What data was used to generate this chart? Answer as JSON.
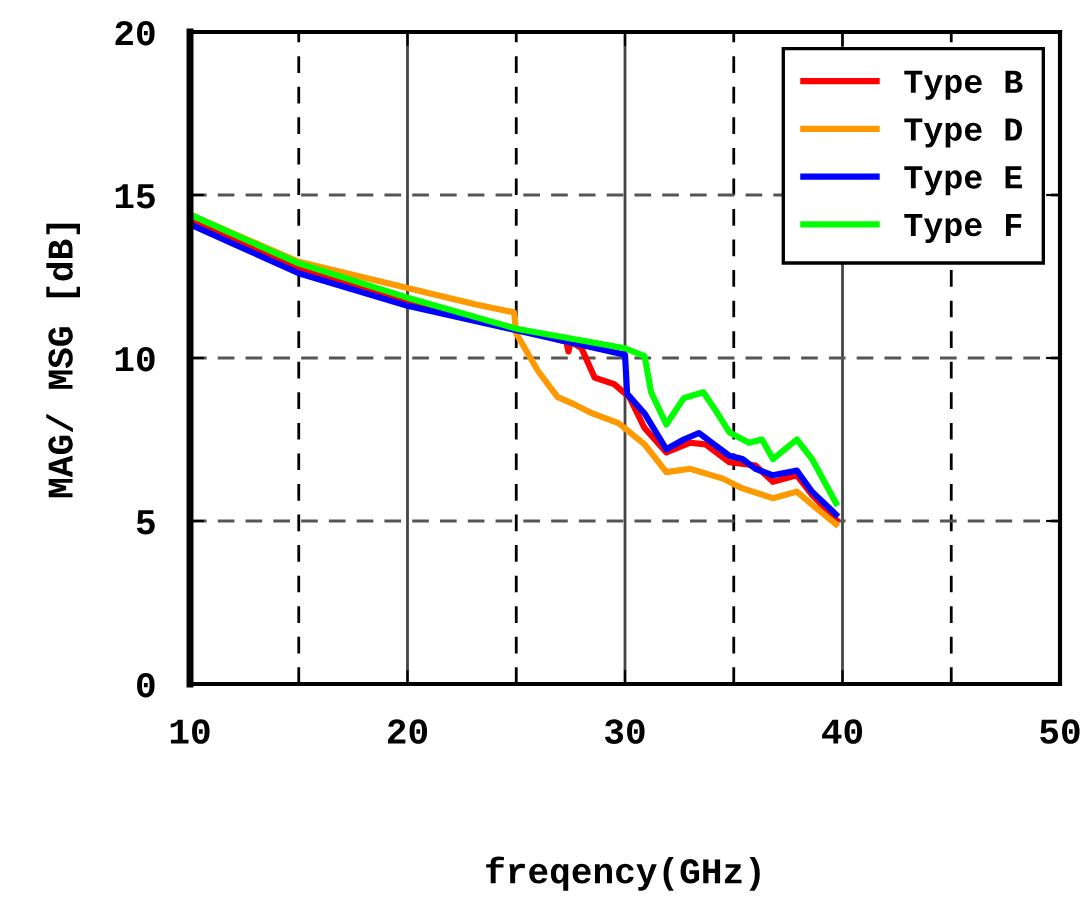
{
  "chart_data": {
    "type": "line",
    "xlabel": "freqency(GHz)",
    "ylabel": "MAG/ MSG [dB]",
    "xlim": [
      10,
      50
    ],
    "ylim": [
      0,
      20
    ],
    "xticks": [
      10,
      20,
      30,
      40,
      50
    ],
    "yticks": [
      0,
      5,
      10,
      15,
      20
    ],
    "grid": true,
    "legend": "top right",
    "line_style": "solid",
    "marker": "none",
    "series": [
      {
        "name": "Type B",
        "color": "#ff0000",
        "x": [
          10,
          15,
          20,
          25,
          27.3,
          27.4,
          27.5,
          28.0,
          28.6,
          29.5,
          30.2,
          30.9,
          31.9,
          33.0,
          33.7,
          34.8,
          36.0,
          36.8,
          37.9,
          38.6,
          39.7
        ],
        "values": [
          14.2,
          12.75,
          11.7,
          10.9,
          10.5,
          10.2,
          10.5,
          10.3,
          9.4,
          9.2,
          8.8,
          7.85,
          7.1,
          7.4,
          7.35,
          6.8,
          6.7,
          6.2,
          6.4,
          5.8,
          5.05
        ]
      },
      {
        "name": "Type D",
        "color": "#ff9900",
        "x": [
          10,
          15,
          20,
          23.1,
          24.9,
          25.0,
          26.0,
          26.9,
          27.6,
          28.5,
          29.7,
          30.9,
          31.9,
          33.0,
          34.5,
          35.4,
          36.8,
          37.9,
          38.6,
          39.7
        ],
        "values": [
          14.4,
          12.95,
          12.15,
          11.65,
          11.4,
          10.75,
          9.6,
          8.8,
          8.6,
          8.3,
          8.0,
          7.35,
          6.5,
          6.6,
          6.3,
          6.0,
          5.7,
          5.9,
          5.5,
          4.9
        ]
      },
      {
        "name": "Type E",
        "color": "#0000ff",
        "x": [
          10,
          15,
          20,
          25,
          30,
          30.1,
          30.9,
          31.9,
          32.7,
          33.4,
          34.1,
          34.8,
          35.4,
          36.0,
          36.8,
          37.9,
          38.6,
          39.7
        ],
        "values": [
          14.1,
          12.6,
          11.6,
          10.85,
          10.1,
          8.9,
          8.3,
          7.2,
          7.5,
          7.7,
          7.35,
          7.0,
          6.9,
          6.6,
          6.4,
          6.55,
          5.9,
          5.2
        ]
      },
      {
        "name": "Type F",
        "color": "#00ff00",
        "x": [
          10,
          15,
          20,
          25,
          30,
          30.9,
          31.2,
          31.9,
          32.7,
          33.6,
          34.1,
          34.8,
          35.7,
          36.3,
          36.8,
          37.9,
          38.6,
          39.7
        ],
        "values": [
          14.4,
          12.9,
          11.85,
          10.9,
          10.3,
          10.06,
          8.95,
          7.96,
          8.77,
          8.95,
          8.46,
          7.72,
          7.4,
          7.5,
          6.9,
          7.5,
          6.9,
          5.55
        ]
      }
    ]
  }
}
